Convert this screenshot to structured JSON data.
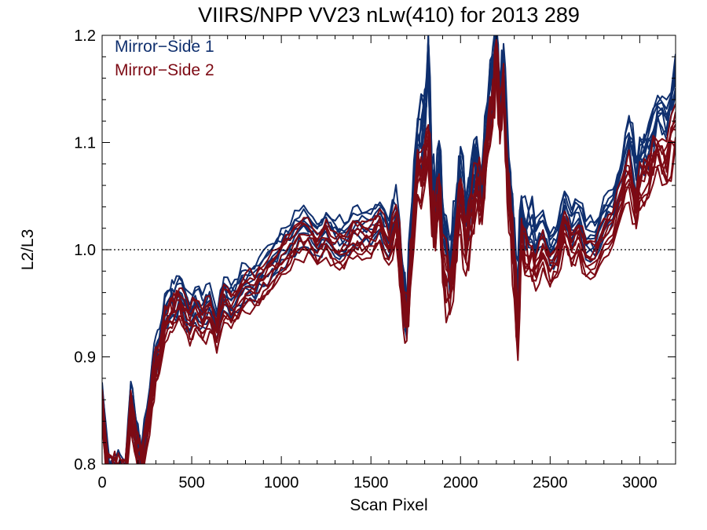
{
  "chart_data": {
    "type": "line",
    "title": "VIIRS/NPP VV23 nLw(410) for 2013 289",
    "xlabel": "Scan Pixel",
    "ylabel": "L2/L3",
    "xlim": [
      0,
      3200
    ],
    "ylim": [
      0.8,
      1.2
    ],
    "x_ticks": [
      0,
      500,
      1000,
      1500,
      2000,
      2500,
      3000
    ],
    "x_tick_labels": [
      "0",
      "500",
      "1000",
      "1500",
      "2000",
      "2500",
      "3000"
    ],
    "y_ticks": [
      0.8,
      0.9,
      1.0,
      1.1,
      1.2
    ],
    "y_tick_labels": [
      "0.8",
      "0.9",
      "1.0",
      "1.1",
      "1.2"
    ],
    "reference_line": {
      "y": 1.0,
      "style": "dotted"
    },
    "legend": {
      "placement": "top-left",
      "entries": [
        "Mirror−Side 1",
        "Mirror−Side 2"
      ]
    },
    "series": [
      {
        "name": "Mirror−Side 1",
        "color": "#0f2f6e",
        "x": [
          0,
          20,
          40,
          60,
          80,
          100,
          130,
          160,
          180,
          200,
          220,
          250,
          280,
          300,
          320,
          350,
          380,
          400,
          430,
          460,
          490,
          520,
          560,
          600,
          640,
          680,
          720,
          760,
          800,
          850,
          900,
          950,
          1000,
          1050,
          1100,
          1150,
          1200,
          1250,
          1300,
          1350,
          1400,
          1450,
          1500,
          1550,
          1600,
          1640,
          1680,
          1700,
          1720,
          1760,
          1800,
          1820,
          1840,
          1860,
          1880,
          1900,
          1940,
          1980,
          2000,
          2030,
          2060,
          2090,
          2120,
          2150,
          2180,
          2200,
          2220,
          2240,
          2260,
          2280,
          2300,
          2320,
          2340,
          2380,
          2420,
          2460,
          2500,
          2540,
          2580,
          2620,
          2660,
          2700,
          2750,
          2800,
          2850,
          2900,
          2940,
          2980,
          3000,
          3050,
          3100,
          3150,
          3200
        ],
        "y": [
          0.86,
          0.82,
          0.79,
          0.79,
          0.79,
          0.79,
          0.79,
          0.86,
          0.84,
          0.82,
          0.8,
          0.84,
          0.88,
          0.9,
          0.91,
          0.94,
          0.95,
          0.95,
          0.96,
          0.95,
          0.94,
          0.95,
          0.94,
          0.95,
          0.93,
          0.96,
          0.95,
          0.96,
          0.97,
          0.97,
          0.98,
          0.99,
          1.0,
          1.01,
          1.02,
          1.02,
          1.01,
          1.02,
          1.01,
          1.01,
          1.02,
          1.02,
          1.02,
          1.03,
          1.01,
          1.04,
          0.96,
          0.94,
          1.01,
          1.1,
          1.13,
          1.18,
          1.07,
          1.05,
          1.09,
          1.03,
          0.98,
          1.04,
          1.07,
          1.03,
          1.06,
          1.08,
          1.06,
          1.12,
          1.16,
          1.2,
          1.14,
          1.17,
          1.1,
          1.05,
          1.0,
          0.96,
          1.04,
          1.02,
          1.01,
          1.02,
          1.0,
          1.01,
          1.04,
          1.02,
          1.03,
          1.01,
          1.01,
          1.03,
          1.04,
          1.07,
          1.11,
          1.07,
          1.09,
          1.1,
          1.13,
          1.12,
          1.16
        ]
      },
      {
        "name": "Mirror−Side 2",
        "color": "#7d0a14",
        "x": [
          0,
          20,
          40,
          60,
          80,
          100,
          130,
          160,
          180,
          200,
          220,
          250,
          280,
          300,
          320,
          350,
          380,
          400,
          430,
          460,
          490,
          520,
          560,
          600,
          640,
          680,
          720,
          760,
          800,
          850,
          900,
          950,
          1000,
          1050,
          1100,
          1150,
          1200,
          1250,
          1300,
          1350,
          1400,
          1450,
          1500,
          1550,
          1600,
          1640,
          1680,
          1700,
          1720,
          1760,
          1800,
          1820,
          1840,
          1860,
          1880,
          1900,
          1940,
          1980,
          2000,
          2030,
          2060,
          2090,
          2120,
          2150,
          2180,
          2200,
          2220,
          2240,
          2260,
          2280,
          2300,
          2320,
          2340,
          2380,
          2420,
          2460,
          2500,
          2540,
          2580,
          2620,
          2660,
          2700,
          2750,
          2800,
          2850,
          2900,
          2940,
          2980,
          3000,
          3050,
          3100,
          3150,
          3200
        ],
        "y": [
          0.85,
          0.81,
          0.79,
          0.79,
          0.79,
          0.79,
          0.79,
          0.85,
          0.83,
          0.81,
          0.8,
          0.83,
          0.87,
          0.89,
          0.9,
          0.93,
          0.94,
          0.94,
          0.95,
          0.94,
          0.93,
          0.94,
          0.93,
          0.94,
          0.92,
          0.95,
          0.94,
          0.95,
          0.96,
          0.96,
          0.97,
          0.98,
          0.99,
          1.0,
          1.01,
          1.01,
          1.0,
          1.01,
          1.0,
          1.0,
          1.01,
          1.01,
          1.01,
          1.02,
          1.0,
          1.02,
          0.95,
          0.93,
          0.99,
          1.07,
          1.08,
          1.1,
          1.03,
          1.02,
          1.05,
          0.99,
          0.96,
          1.01,
          1.04,
          1.0,
          1.03,
          1.06,
          1.04,
          1.1,
          1.13,
          1.17,
          1.12,
          1.15,
          1.07,
          1.03,
          0.98,
          0.92,
          1.01,
          0.99,
          0.98,
          1.0,
          0.98,
          0.99,
          1.02,
          1.0,
          1.01,
          0.99,
          0.99,
          1.01,
          1.02,
          1.05,
          1.07,
          1.04,
          1.06,
          1.07,
          1.09,
          1.08,
          1.11
        ]
      }
    ]
  }
}
